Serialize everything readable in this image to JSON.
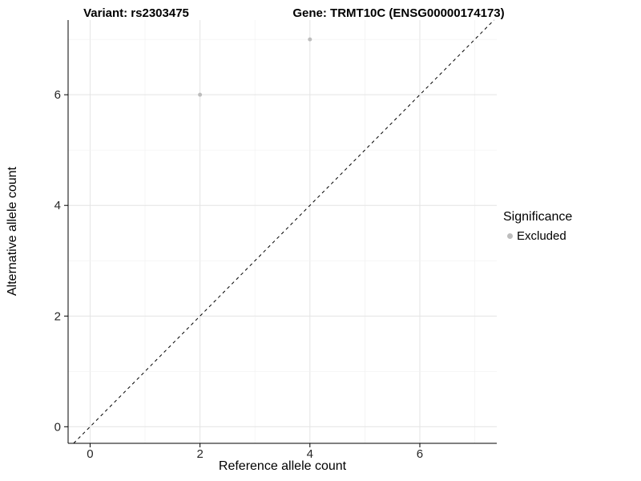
{
  "chart_data": {
    "type": "scatter",
    "title_left": "Variant: rs2303475",
    "title_right": "Gene: TRMT10C (ENSG00000174173)",
    "xlabel": "Reference allele count",
    "ylabel": "Alternative allele count",
    "xlim": [
      -0.4,
      7.4
    ],
    "ylim": [
      -0.3,
      7.35
    ],
    "xticks": [
      0,
      2,
      4,
      6
    ],
    "yticks": [
      0,
      2,
      4,
      6
    ],
    "grid": true,
    "points": [
      {
        "x": 2,
        "y": 6,
        "significance": "Excluded"
      },
      {
        "x": 4,
        "y": 7,
        "significance": "Excluded"
      }
    ],
    "point_color": "#bdbdbd",
    "point_radius": 2.5,
    "identity_line": {
      "style": "dashed",
      "color": "#000000",
      "from": 0,
      "to": 7.35
    },
    "legend": {
      "position": "right",
      "title": "Significance",
      "entries": [
        {
          "label": "Excluded",
          "color": "#bdbdbd"
        }
      ]
    },
    "colors": {
      "grid_major": "#e4e4e4",
      "grid_minor": "#f1f1f1",
      "axis": "#000000",
      "tick_label": "#262626",
      "background": "#ffffff"
    }
  }
}
